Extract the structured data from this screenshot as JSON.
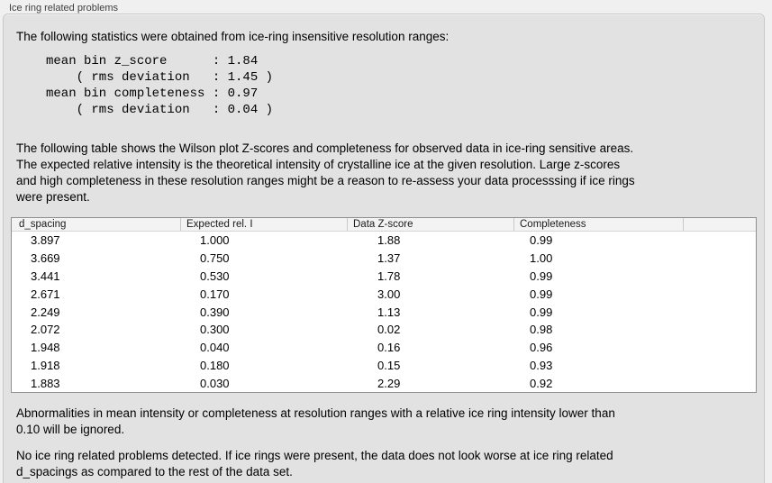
{
  "window": {
    "title": "Ice ring related problems"
  },
  "panel": {
    "intro": "The following statistics were obtained from ice-ring insensitive resolution ranges:",
    "stats_lines": [
      "mean bin z_score      : 1.84",
      "    ( rms deviation   : 1.45 )",
      "mean bin completeness : 0.97",
      "    ( rms deviation   : 0.04 )"
    ],
    "description": "The following table shows the Wilson plot Z-scores and completeness for observed data in ice-ring sensitive areas.\nThe expected relative intensity is the theoretical intensity of crystalline ice at the given resolution. Large z-scores\nand high completeness in these resolution ranges might be a reason to re-assess your data processsing if ice rings\nwere present.",
    "table": {
      "columns": [
        "d_spacing",
        "Expected rel. I",
        "Data Z-score",
        "Completeness"
      ],
      "rows": [
        [
          "3.897",
          "1.000",
          "1.88",
          "0.99"
        ],
        [
          "3.669",
          "0.750",
          "1.37",
          "1.00"
        ],
        [
          "3.441",
          "0.530",
          "1.78",
          "0.99"
        ],
        [
          "2.671",
          "0.170",
          "3.00",
          "0.99"
        ],
        [
          "2.249",
          "0.390",
          "1.13",
          "0.99"
        ],
        [
          "2.072",
          "0.300",
          "0.02",
          "0.98"
        ],
        [
          "1.948",
          "0.040",
          "0.16",
          "0.96"
        ],
        [
          "1.918",
          "0.180",
          "0.15",
          "0.93"
        ],
        [
          "1.883",
          "0.030",
          "2.29",
          "0.92"
        ]
      ]
    },
    "note_ignore": "Abnormalities in mean intensity or completeness at resolution ranges with a relative ice ring intensity lower than\n0.10 will be ignored.",
    "conclusion": "No ice ring related problems detected. If ice rings were present, the data does not look worse at ice ring related\nd_spacings as compared to the rest of the data set."
  },
  "colors": {
    "outer_bg": "#f0f0f0",
    "panel_bg": "#e2e2e2",
    "table_bg": "#ffffff",
    "table_border": "#8f8f8f",
    "header_bg": "#f3f3f3"
  }
}
